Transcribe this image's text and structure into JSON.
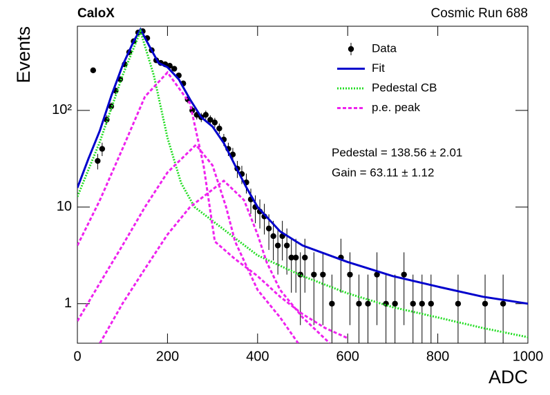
{
  "chart_data": {
    "type": "scatter",
    "title": "CaloX",
    "subtitle": "Cosmic Run 688",
    "x_label": "ADC",
    "y_label": "Events",
    "log_y": true,
    "legend": "upper right",
    "annotations": [
      "Pedestal = 138.56 ± 2.01",
      "Gain = 63.11 ± 1.12"
    ],
    "xlim": [
      0,
      1000
    ],
    "xticks": [
      0,
      200,
      400,
      600,
      800,
      1000
    ],
    "ylim": [
      0.39,
      743
    ],
    "yticks": [
      1,
      10,
      {
        "value": 100,
        "label": "10²"
      }
    ],
    "series": [
      {
        "name": "Data",
        "type": "errorbar",
        "color": "#000000",
        "x": [
          35,
          45,
          55,
          65,
          75,
          85,
          95,
          105,
          115,
          125,
          135,
          145,
          155,
          165,
          175,
          185,
          195,
          205,
          215,
          225,
          235,
          245,
          255,
          265,
          275,
          285,
          295,
          305,
          315,
          325,
          335,
          345,
          355,
          365,
          375,
          385,
          395,
          405,
          415,
          425,
          435,
          445,
          455,
          465,
          475,
          485,
          495,
          505,
          525,
          545,
          565,
          585,
          605,
          625,
          645,
          665,
          685,
          705,
          725,
          745,
          765,
          785,
          845,
          905,
          945
        ],
        "values": [
          260,
          30,
          40,
          80,
          110,
          160,
          210,
          300,
          400,
          520,
          640,
          660,
          560,
          420,
          330,
          310,
          300,
          290,
          270,
          230,
          190,
          130,
          100,
          90,
          85,
          90,
          80,
          75,
          65,
          50,
          40,
          35,
          25,
          22,
          18,
          12,
          10,
          9,
          8,
          6,
          5,
          4,
          5,
          4,
          3,
          3,
          2,
          3,
          2,
          2,
          1,
          3,
          2,
          1,
          1,
          2,
          1,
          1,
          2,
          1,
          1,
          1,
          1,
          1,
          1
        ],
        "errors": [
          16.1,
          5.5,
          6.3,
          8.9,
          10.5,
          12.6,
          14.5,
          17.3,
          20,
          22.8,
          25.3,
          25.7,
          23.7,
          20.5,
          18.2,
          17.6,
          17.3,
          17,
          16.4,
          15.2,
          13.8,
          11.4,
          10,
          9.5,
          9.2,
          9.5,
          8.9,
          8.7,
          8.1,
          7.1,
          6.3,
          5.9,
          5,
          4.7,
          4.2,
          3.5,
          3.2,
          3,
          2.8,
          2.4,
          2.2,
          2,
          2.2,
          2,
          1.7,
          1.7,
          1.4,
          1.7,
          1.4,
          1.4,
          1,
          1.7,
          1.4,
          1,
          1,
          1.4,
          1,
          1,
          1.4,
          1,
          1,
          1,
          1,
          1,
          1
        ]
      },
      {
        "name": "Fit",
        "type": "line",
        "color": "#0000cc",
        "style": "solid",
        "x": [
          0,
          25,
          50,
          75,
          100,
          125,
          140,
          160,
          180,
          200,
          225,
          250,
          275,
          300,
          325,
          350,
          375,
          400,
          450,
          500,
          600,
          700,
          800,
          900,
          1000
        ],
        "values": [
          15.8,
          32,
          62,
          140,
          290,
          520,
          690,
          460,
          310,
          280,
          210,
          130,
          85,
          68,
          46,
          27,
          16,
          10,
          5.6,
          4.0,
          2.7,
          1.93,
          1.5,
          1.18,
          1.0
        ]
      },
      {
        "name": "Pedestal CB",
        "type": "line",
        "color": "#22dd22",
        "style": "dotted",
        "x": [
          0,
          50,
          100,
          140,
          170,
          200,
          230,
          260,
          300,
          350,
          400,
          500,
          600,
          700,
          800,
          900,
          1000
        ],
        "values": [
          12.8,
          47.5,
          228,
          660,
          228,
          52,
          17.8,
          10,
          7.2,
          4.76,
          3.16,
          1.93,
          1.28,
          0.92,
          0.72,
          0.56,
          0.45
        ]
      },
      {
        "name": "p.e. peak",
        "type": "line",
        "color": "#ee22ee",
        "style": "dashed",
        "x": [
          0,
          50,
          100,
          150,
          200,
          250,
          280,
          305,
          350,
          400,
          450,
          500,
          550,
          600
        ],
        "values": [
          4.0,
          11.8,
          40,
          139,
          247,
          118,
          27,
          4.4,
          2.9,
          1.93,
          1.18,
          0.78,
          0.56,
          0.44
        ]
      },
      {
        "type": "line",
        "color": "#ee22ee",
        "style": "dashed",
        "x": [
          0,
          50,
          100,
          150,
          200,
          263,
          300,
          330,
          350,
          400,
          450,
          490
        ],
        "values": [
          0.66,
          1.64,
          4.0,
          10,
          22.8,
          44,
          27,
          10,
          4.4,
          1.39,
          0.72,
          0.39
        ]
      },
      {
        "type": "line",
        "color": "#ee22ee",
        "style": "dashed",
        "x": [
          50,
          100,
          150,
          200,
          250,
          325,
          370,
          400,
          420,
          450,
          500,
          560
        ],
        "values": [
          0.39,
          1,
          2.3,
          5.2,
          10,
          18.7,
          11.8,
          5.2,
          2.7,
          1.39,
          0.72,
          0.39
        ]
      }
    ]
  }
}
